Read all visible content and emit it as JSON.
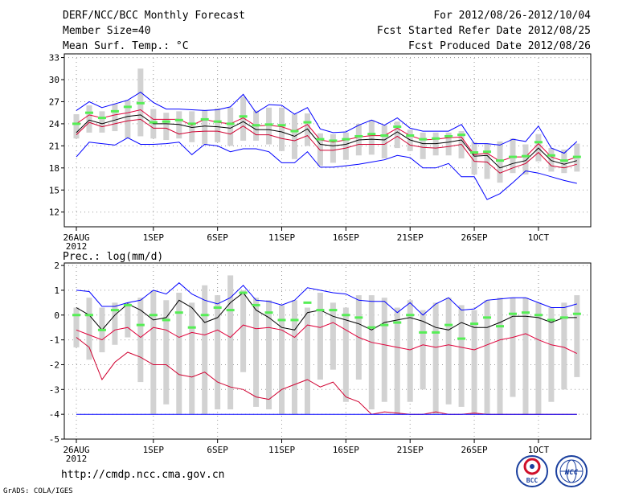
{
  "header": {
    "left": [
      "DERF/NCC/BCC Monthly Forecast",
      "Member Size=40",
      "Mean Surf. Temp.: °C"
    ],
    "right": [
      "For 2012/08/26-2012/10/04",
      "Fcst Started Refer Date 2012/08/25",
      "Fcst Produced Date 2012/08/26"
    ]
  },
  "footer": {
    "url": "http://cmdp.ncc.cma.gov.cn",
    "credit": "GrADS: COLA/IGES",
    "logo1_text": "BCC",
    "logo2_text": "NCC"
  },
  "colors": {
    "spread_bar": "#d2d2d2",
    "max_line": "#0000ff",
    "min_line": "#d00030",
    "upper_line": "#e0003a",
    "mean_line": "#000000",
    "median_mark": "#55ee55",
    "grid": "#999999"
  },
  "chart_data": [
    {
      "type": "line",
      "title": "Mean Surf. Temp.: °C",
      "x_tick_labels": [
        "26AUG",
        "1SEP",
        "6SEP",
        "11SEP",
        "16SEP",
        "21SEP",
        "26SEP",
        "1OCT"
      ],
      "x_tick_days": [
        0,
        6,
        11,
        16,
        21,
        26,
        31,
        36
      ],
      "x_sublabel": "2012",
      "ylim": [
        10,
        33.5
      ],
      "yticks": [
        12,
        15,
        18,
        21,
        24,
        27,
        30,
        33
      ],
      "days": [
        0,
        1,
        2,
        3,
        4,
        5,
        6,
        7,
        8,
        9,
        10,
        11,
        12,
        13,
        14,
        15,
        16,
        17,
        18,
        19,
        20,
        21,
        22,
        23,
        24,
        25,
        26,
        27,
        28,
        29,
        30,
        31,
        32,
        33,
        34,
        35,
        36,
        37,
        38,
        39
      ],
      "series": [
        {
          "name": "max",
          "values": [
            25.8,
            27.0,
            26.2,
            26.7,
            27.2,
            28.3,
            26.9,
            26.0,
            26.0,
            25.9,
            25.8,
            25.9,
            26.3,
            28.0,
            25.5,
            26.6,
            26.5,
            25.3,
            26.2,
            23.3,
            22.8,
            22.9,
            23.8,
            24.5,
            23.8,
            24.8,
            23.4,
            23.0,
            23.0,
            23.0,
            23.9,
            21.3,
            21.3,
            21.1,
            21.9,
            21.6,
            23.7,
            20.7,
            20.0,
            21.6
          ]
        },
        {
          "name": "upper",
          "values": [
            24.0,
            25.2,
            24.8,
            25.2,
            25.5,
            25.9,
            24.6,
            24.6,
            24.6,
            23.8,
            24.6,
            24.2,
            24.0,
            24.8,
            23.7,
            23.8,
            23.6,
            23.0,
            23.9,
            21.8,
            21.5,
            21.8,
            22.2,
            22.4,
            22.4,
            23.4,
            22.4,
            21.8,
            21.9,
            22.1,
            22.2,
            19.8,
            20.0,
            18.9,
            19.5,
            19.5,
            21.3,
            19.5,
            18.9,
            19.5
          ]
        },
        {
          "name": "mean",
          "values": [
            22.8,
            24.5,
            24.0,
            24.5,
            25.0,
            25.2,
            24.0,
            24.0,
            23.9,
            23.5,
            23.7,
            23.6,
            23.4,
            24.3,
            23.2,
            23.2,
            22.9,
            22.3,
            23.3,
            21.2,
            21.0,
            21.2,
            21.8,
            21.9,
            21.8,
            22.9,
            21.8,
            21.3,
            21.3,
            21.5,
            21.8,
            19.6,
            19.7,
            18.0,
            18.6,
            19.0,
            20.7,
            19.0,
            18.5,
            19.0
          ]
        },
        {
          "name": "lower",
          "values": [
            22.5,
            24.2,
            23.6,
            24.0,
            24.4,
            24.6,
            23.4,
            23.4,
            22.6,
            22.9,
            23.0,
            23.0,
            22.6,
            23.7,
            22.5,
            22.5,
            22.0,
            21.7,
            22.4,
            20.4,
            20.4,
            20.7,
            21.2,
            21.2,
            21.2,
            22.3,
            21.1,
            20.8,
            20.7,
            20.9,
            21.2,
            18.9,
            18.8,
            17.3,
            18.0,
            18.6,
            20.1,
            18.3,
            18.0,
            18.5
          ]
        },
        {
          "name": "min",
          "values": [
            19.5,
            21.5,
            21.3,
            21.1,
            22.1,
            21.2,
            21.2,
            21.3,
            21.5,
            19.8,
            21.2,
            21.0,
            20.2,
            20.6,
            20.6,
            20.2,
            18.7,
            18.7,
            20.2,
            18.1,
            18.1,
            18.3,
            18.5,
            18.8,
            19.1,
            19.7,
            19.4,
            18.0,
            18.0,
            18.6,
            16.8,
            16.8,
            13.7,
            14.5,
            16.0,
            17.6,
            17.3,
            16.8,
            16.3,
            15.9
          ]
        },
        {
          "name": "median",
          "values": [
            24.0,
            25.5,
            24.8,
            25.7,
            26.3,
            26.8,
            24.2,
            24.3,
            24.5,
            24.0,
            24.6,
            24.3,
            24.0,
            25.0,
            23.8,
            23.9,
            23.8,
            23.0,
            24.2,
            21.9,
            21.7,
            21.9,
            22.3,
            22.6,
            22.4,
            23.6,
            22.4,
            21.9,
            22.0,
            22.3,
            22.5,
            20.1,
            20.2,
            19.0,
            19.5,
            19.6,
            21.5,
            19.7,
            19.0,
            19.5
          ]
        }
      ],
      "bars": {
        "name": "spread",
        "low": [
          22.0,
          22.8,
          22.8,
          23.0,
          22.0,
          22.3,
          22.0,
          21.8,
          22.0,
          21.5,
          21.2,
          21.5,
          21.0,
          21.7,
          21.7,
          21.2,
          20.3,
          19.2,
          21.0,
          18.3,
          18.7,
          19.1,
          19.7,
          19.8,
          19.3,
          20.7,
          20.3,
          19.2,
          19.7,
          19.7,
          19.3,
          17.1,
          16.5,
          16.0,
          17.3,
          17.1,
          18.9,
          17.5,
          17.3,
          17.5
        ],
        "high": [
          25.3,
          26.5,
          25.7,
          26.7,
          27.2,
          31.5,
          26.0,
          25.5,
          25.7,
          25.7,
          25.8,
          26.1,
          26.2,
          27.7,
          25.8,
          26.2,
          26.2,
          25.3,
          25.4,
          22.7,
          22.6,
          22.8,
          24.0,
          24.5,
          23.8,
          24.3,
          23.2,
          22.8,
          22.8,
          22.8,
          23.0,
          21.5,
          21.3,
          21.6,
          22.0,
          21.2,
          22.6,
          20.7,
          20.5,
          21.3
        ]
      }
    },
    {
      "type": "line",
      "title": "Prec.: log(mm/d)",
      "x_tick_labels": [
        "26AUG",
        "1SEP",
        "6SEP",
        "11SEP",
        "16SEP",
        "21SEP",
        "26SEP",
        "1OCT"
      ],
      "x_tick_days": [
        0,
        6,
        11,
        16,
        21,
        26,
        31,
        36
      ],
      "x_sublabel": "2012",
      "ylim": [
        -5,
        2.1
      ],
      "yticks": [
        -5,
        -4,
        -3,
        -2,
        -1,
        0,
        1,
        2
      ],
      "days": [
        0,
        1,
        2,
        3,
        4,
        5,
        6,
        7,
        8,
        9,
        10,
        11,
        12,
        13,
        14,
        15,
        16,
        17,
        18,
        19,
        20,
        21,
        22,
        23,
        24,
        25,
        26,
        27,
        28,
        29,
        30,
        31,
        32,
        33,
        34,
        35,
        36,
        37,
        38,
        39
      ],
      "series": [
        {
          "name": "max",
          "values": [
            1.0,
            0.95,
            0.35,
            0.35,
            0.5,
            0.6,
            1.0,
            0.85,
            1.3,
            0.85,
            0.6,
            0.45,
            0.7,
            1.2,
            0.6,
            0.55,
            0.4,
            0.6,
            1.1,
            1.0,
            0.9,
            0.85,
            0.6,
            0.55,
            0.55,
            0.1,
            0.5,
            0.0,
            0.45,
            0.7,
            0.2,
            0.25,
            0.6,
            0.65,
            0.7,
            0.7,
            0.5,
            0.3,
            0.3,
            0.45
          ]
        },
        {
          "name": "mean",
          "values": [
            0.3,
            0.0,
            -0.6,
            0.0,
            0.45,
            0.2,
            -0.2,
            -0.1,
            0.6,
            0.3,
            -0.3,
            -0.1,
            0.5,
            0.9,
            0.2,
            -0.1,
            -0.5,
            -0.6,
            0.1,
            0.2,
            -0.05,
            -0.2,
            -0.35,
            -0.6,
            -0.3,
            -0.2,
            -0.1,
            -0.25,
            -0.5,
            -0.6,
            -0.3,
            -0.5,
            -0.5,
            -0.3,
            -0.05,
            -0.05,
            -0.1,
            -0.3,
            -0.1,
            -0.1
          ]
        },
        {
          "name": "upper",
          "values": [
            -0.6,
            -0.8,
            -1.0,
            -0.6,
            -0.5,
            -0.9,
            -0.5,
            -0.6,
            -0.9,
            -0.7,
            -0.8,
            -0.6,
            -0.9,
            -0.4,
            -0.55,
            -0.5,
            -0.6,
            -0.9,
            -0.4,
            -0.5,
            -0.3,
            -0.6,
            -0.9,
            -1.1,
            -1.2,
            -1.3,
            -1.4,
            -1.2,
            -1.3,
            -1.2,
            -1.3,
            -1.4,
            -1.2,
            -1.0,
            -0.9,
            -0.75,
            -1.0,
            -1.2,
            -1.3,
            -1.55
          ]
        },
        {
          "name": "lower",
          "values": [
            -0.9,
            -1.3,
            -2.6,
            -1.9,
            -1.5,
            -1.7,
            -2.0,
            -2.0,
            -2.4,
            -2.5,
            -2.3,
            -2.7,
            -2.9,
            -3.0,
            -3.3,
            -3.4,
            -3.0,
            -2.8,
            -2.6,
            -2.9,
            -2.7,
            -3.3,
            -3.5,
            -4.0,
            -3.9,
            -3.95,
            -4.0,
            -4.0,
            -3.9,
            -4.0,
            -4.0,
            -3.95,
            -4.0,
            -4.0,
            -4.0,
            -4.0,
            -4.0,
            -4.0,
            -4.0,
            -4.0
          ]
        },
        {
          "name": "min",
          "values": [
            -4.0,
            -4.0,
            -4.0,
            -4.0,
            -4.0,
            -4.0,
            -4.0,
            -4.0,
            -4.0,
            -4.0,
            -4.0,
            -4.0,
            -4.0,
            -4.0,
            -4.0,
            -4.0,
            -4.0,
            -4.0,
            -4.0,
            -4.0,
            -4.0,
            -4.0,
            -4.0,
            -4.0,
            -4.0,
            -4.0,
            -4.0,
            -4.0,
            -4.0,
            -4.0,
            -4.0,
            -4.0,
            -4.0,
            -4.0,
            -4.0,
            -4.0,
            -4.0,
            -4.0,
            -4.0,
            -4.0
          ]
        },
        {
          "name": "median",
          "values": [
            0.0,
            0.0,
            -0.6,
            0.2,
            0.4,
            -0.4,
            0.0,
            -0.2,
            0.1,
            -0.5,
            0.0,
            0.3,
            0.2,
            0.9,
            0.4,
            0.1,
            -0.2,
            -0.2,
            0.5,
            0.2,
            0.2,
            0.0,
            -0.1,
            -0.5,
            -0.4,
            -0.3,
            0.0,
            -0.7,
            -0.7,
            -0.4,
            -0.95,
            -0.35,
            -0.1,
            -0.45,
            0.05,
            0.1,
            0.0,
            -0.2,
            -0.1,
            0.05
          ]
        }
      ],
      "bars": {
        "name": "spread",
        "low": [
          -1.3,
          -1.8,
          -1.5,
          -1.2,
          -0.9,
          -2.7,
          -4.0,
          -3.6,
          -4.0,
          -4.0,
          -4.0,
          -3.8,
          -3.8,
          -2.3,
          -3.7,
          -3.8,
          -4.0,
          -4.0,
          -4.0,
          -2.6,
          -2.2,
          -3.5,
          -2.6,
          -3.8,
          -3.5,
          -4.0,
          -3.5,
          -3.0,
          -4.0,
          -3.6,
          -3.7,
          -4.0,
          -4.0,
          -4.0,
          -3.3,
          -4.0,
          -4.0,
          -3.5,
          -3.0,
          -2.5
        ],
        "high": [
          0.3,
          0.7,
          0.3,
          0.5,
          0.5,
          0.7,
          1.0,
          0.6,
          0.9,
          0.5,
          1.2,
          0.8,
          1.6,
          1.0,
          0.7,
          0.6,
          0.4,
          0.6,
          0.3,
          0.9,
          0.5,
          0.3,
          0.8,
          0.8,
          0.7,
          0.3,
          0.6,
          0.2,
          0.5,
          0.7,
          0.4,
          0.2,
          0.6,
          0.7,
          0.7,
          0.7,
          0.5,
          0.3,
          0.5,
          0.8
        ]
      }
    }
  ]
}
